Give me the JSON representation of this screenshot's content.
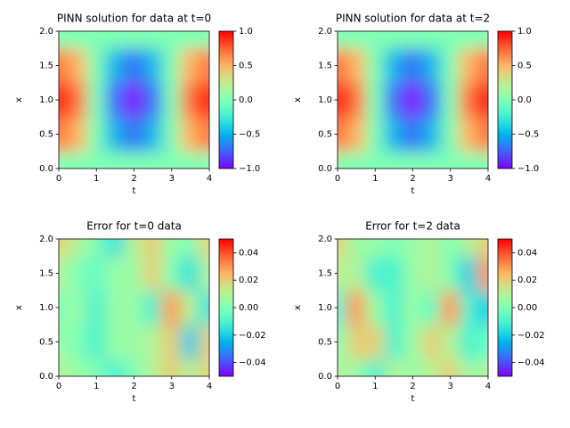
{
  "chart_data": [
    {
      "type": "heatmap",
      "title": "PINN solution for data at t=0",
      "xlabel": "t",
      "ylabel": "x",
      "x": [
        0,
        0.5,
        1,
        1.5,
        2,
        2.5,
        3,
        3.5,
        4
      ],
      "y": [
        0,
        0.5,
        1,
        1.5,
        2
      ],
      "z": [
        [
          0,
          0,
          0,
          0,
          0,
          0,
          0,
          0,
          0
        ],
        [
          0.71,
          0.5,
          0,
          -0.5,
          -0.71,
          -0.5,
          0,
          0.5,
          0.71
        ],
        [
          1,
          0.71,
          0,
          -0.71,
          -1,
          -0.71,
          0,
          0.71,
          1
        ],
        [
          0.71,
          0.5,
          0,
          -0.5,
          -0.71,
          -0.5,
          0,
          0.5,
          0.71
        ],
        [
          0,
          0,
          0,
          0,
          0,
          0,
          0,
          0,
          0
        ]
      ],
      "xlim": [
        0,
        4
      ],
      "ylim": [
        0,
        2
      ],
      "xticks": [
        0,
        1,
        2,
        3,
        4
      ],
      "yticks": [
        {
          "value": 0,
          "label": "0.0"
        },
        {
          "value": 0.5,
          "label": "0.5"
        },
        {
          "value": 1,
          "label": "1.0"
        },
        {
          "value": 1.5,
          "label": "1.5"
        },
        {
          "value": 2,
          "label": "2.0"
        }
      ],
      "clim": [
        -1,
        1
      ],
      "cticks": [
        {
          "value": -1,
          "label": "−1.0"
        },
        {
          "value": -0.5,
          "label": "−0.5"
        },
        {
          "value": 0,
          "label": "0.0"
        },
        {
          "value": 0.5,
          "label": "0.5"
        },
        {
          "value": 1,
          "label": "1.0"
        }
      ]
    },
    {
      "type": "heatmap",
      "title": "PINN solution for data at t=2",
      "xlabel": "t",
      "ylabel": "x",
      "x": [
        0,
        0.5,
        1,
        1.5,
        2,
        2.5,
        3,
        3.5,
        4
      ],
      "y": [
        0,
        0.5,
        1,
        1.5,
        2
      ],
      "z": [
        [
          0,
          0,
          0,
          0,
          0,
          0,
          0,
          0,
          0
        ],
        [
          0.71,
          0.5,
          0,
          -0.5,
          -0.71,
          -0.5,
          0,
          0.5,
          0.71
        ],
        [
          1,
          0.71,
          0,
          -0.71,
          -1,
          -0.71,
          0,
          0.71,
          1
        ],
        [
          0.71,
          0.5,
          0,
          -0.5,
          -0.71,
          -0.5,
          0,
          0.5,
          0.71
        ],
        [
          0,
          0,
          0,
          0,
          0,
          0,
          0,
          0,
          0
        ]
      ],
      "xlim": [
        0,
        4
      ],
      "ylim": [
        0,
        2
      ],
      "xticks": [
        0,
        1,
        2,
        3,
        4
      ],
      "yticks": [
        {
          "value": 0,
          "label": "0.0"
        },
        {
          "value": 0.5,
          "label": "0.5"
        },
        {
          "value": 1,
          "label": "1.0"
        },
        {
          "value": 1.5,
          "label": "1.5"
        },
        {
          "value": 2,
          "label": "2.0"
        }
      ],
      "clim": [
        -1,
        1
      ],
      "cticks": [
        {
          "value": -1,
          "label": "−1.0"
        },
        {
          "value": -0.5,
          "label": "−0.5"
        },
        {
          "value": 0,
          "label": "0.0"
        },
        {
          "value": 0.5,
          "label": "0.5"
        },
        {
          "value": 1,
          "label": "1.0"
        }
      ]
    },
    {
      "type": "heatmap",
      "title": "Error for t=0 data",
      "xlabel": "t",
      "ylabel": "x",
      "x": [
        0,
        0.5,
        1,
        1.5,
        2,
        2.5,
        3,
        3.5,
        4
      ],
      "y": [
        0,
        0.5,
        1,
        1.5,
        2
      ],
      "z": [
        [
          0.01,
          0.005,
          0,
          -0.01,
          0,
          0.01,
          0.02,
          0.01,
          0.02
        ],
        [
          0.005,
          0,
          -0.01,
          0.005,
          0.005,
          0.01,
          0.02,
          -0.02,
          0.02
        ],
        [
          0,
          0.005,
          -0.01,
          0.005,
          0.005,
          -0.01,
          0.03,
          0.01,
          -0.015
        ],
        [
          0.01,
          0,
          -0.005,
          0.005,
          0.005,
          0.02,
          0,
          -0.015,
          0.01
        ],
        [
          0.02,
          0.01,
          0,
          -0.015,
          0.01,
          0.02,
          0.005,
          0,
          0.02
        ]
      ],
      "xlim": [
        0,
        4
      ],
      "ylim": [
        0,
        2
      ],
      "xticks": [
        0,
        1,
        2,
        3,
        4
      ],
      "yticks": [
        {
          "value": 0,
          "label": "0.0"
        },
        {
          "value": 0.5,
          "label": "0.5"
        },
        {
          "value": 1,
          "label": "1.0"
        },
        {
          "value": 1.5,
          "label": "1.5"
        },
        {
          "value": 2,
          "label": "2.0"
        }
      ],
      "clim": [
        -0.05,
        0.05
      ],
      "cticks": [
        {
          "value": -0.04,
          "label": "−0.04"
        },
        {
          "value": -0.02,
          "label": "−0.02"
        },
        {
          "value": 0,
          "label": "0.00"
        },
        {
          "value": 0.02,
          "label": "0.02"
        },
        {
          "value": 0.04,
          "label": "0.04"
        }
      ]
    },
    {
      "type": "heatmap",
      "title": "Error for t=2 data",
      "xlabel": "t",
      "ylabel": "x",
      "x": [
        0,
        0.5,
        1,
        1.5,
        2,
        2.5,
        3,
        3.5,
        4
      ],
      "y": [
        0,
        0.5,
        1,
        1.5,
        2
      ],
      "z": [
        [
          0.01,
          0.005,
          -0.01,
          0.01,
          0.005,
          0.01,
          0.02,
          0.005,
          0.01
        ],
        [
          0,
          0.02,
          0.02,
          -0.01,
          0.005,
          0.02,
          0.01,
          -0.01,
          -0.005
        ],
        [
          -0.01,
          0.03,
          0.005,
          -0.01,
          0.005,
          -0.005,
          0.03,
          -0.01,
          -0.02
        ],
        [
          0.01,
          0.01,
          -0.01,
          -0.01,
          0.005,
          0.01,
          0,
          -0.02,
          0.03
        ],
        [
          0.02,
          0.005,
          0.005,
          0,
          0.005,
          0.01,
          0,
          0.01,
          0.02
        ]
      ],
      "xlim": [
        0,
        4
      ],
      "ylim": [
        0,
        2
      ],
      "xticks": [
        0,
        1,
        2,
        3,
        4
      ],
      "yticks": [
        {
          "value": 0,
          "label": "0.0"
        },
        {
          "value": 0.5,
          "label": "0.5"
        },
        {
          "value": 1,
          "label": "1.0"
        },
        {
          "value": 1.5,
          "label": "1.5"
        },
        {
          "value": 2,
          "label": "2.0"
        }
      ],
      "clim": [
        -0.05,
        0.05
      ],
      "cticks": [
        {
          "value": -0.04,
          "label": "−0.04"
        },
        {
          "value": -0.02,
          "label": "−0.02"
        },
        {
          "value": 0,
          "label": "0.00"
        },
        {
          "value": 0.02,
          "label": "0.02"
        },
        {
          "value": 0.04,
          "label": "0.04"
        }
      ]
    }
  ]
}
